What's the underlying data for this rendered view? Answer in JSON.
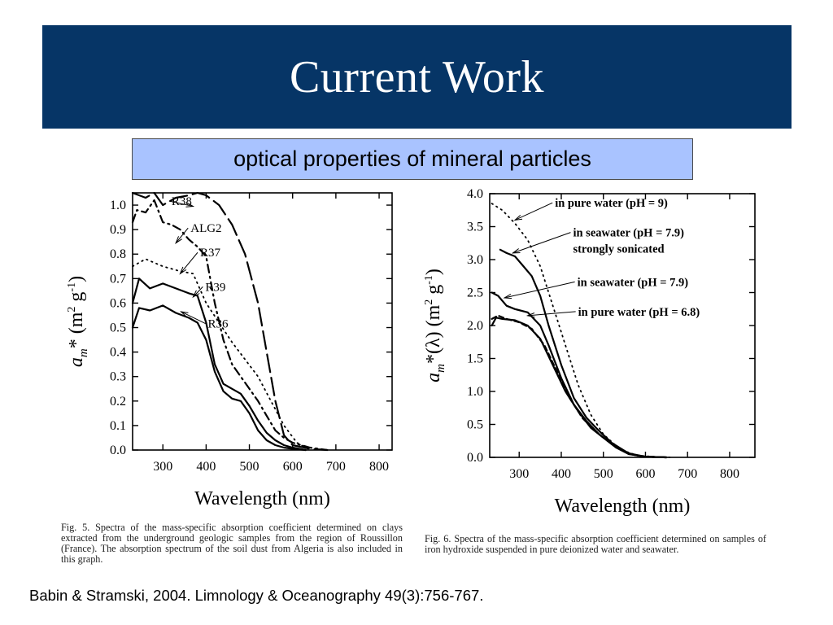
{
  "slide": {
    "title": "Current Work",
    "subtitle": "optical properties of mineral particles",
    "citation": "Babin & Stramski, 2004. Limnology & Oceanography 49(3):756-767."
  },
  "colors": {
    "title_bar": "#063566",
    "title_text": "#ffffff",
    "subtitle_box": "#a9c3ff",
    "curve": "#000000"
  },
  "captions": {
    "fig5": "Fig. 5.   Spectra of the mass-specific absorption coefficient determined on clays extracted from the underground geologic samples from the region of Roussillon (France). The absorption spectrum of the soil dust from Algeria is also included in this graph.",
    "fig6": "Fig. 6.   Spectra of the mass-specific absorption coefficient determined on samples of iron hydroxide suspended in pure deionized water and seawater."
  },
  "chart_data": [
    {
      "type": "line",
      "xlabel": "Wavelength (nm)",
      "ylabel_main": "a",
      "ylabel_sub": "m",
      "ylabel_rest": "* (m",
      "ylabel_sup1": "2",
      "ylabel_mid": " g",
      "ylabel_sup2": "-1",
      "ylabel_end": ")",
      "xlim": [
        230,
        830
      ],
      "ylim": [
        0,
        1.05
      ],
      "xticks": [
        300,
        400,
        500,
        600,
        700,
        800
      ],
      "xtick_labels": [
        "300",
        "400",
        "500",
        "600",
        "700",
        "800"
      ],
      "yticks": [
        0,
        0.1,
        0.2,
        0.3,
        0.4,
        0.5,
        0.6,
        0.7,
        0.8,
        0.9,
        1.0
      ],
      "ytick_labels": [
        "0.0",
        "0.1",
        "0.2",
        "0.3",
        "0.4",
        "0.5",
        "0.6",
        "0.7",
        "0.8",
        "0.9",
        "1.0"
      ],
      "series": [
        {
          "name": "R38",
          "style": "longdash",
          "x": [
            230,
            260,
            280,
            300,
            330,
            360,
            380,
            400,
            430,
            460,
            490,
            520,
            540,
            560,
            580,
            600,
            640,
            680
          ],
          "y": [
            1.05,
            1.03,
            1.05,
            1.0,
            1.03,
            1.04,
            1.05,
            1.04,
            1.0,
            0.92,
            0.8,
            0.6,
            0.4,
            0.2,
            0.06,
            0.02,
            0.005,
            0.0
          ],
          "label_pos": [
            320,
            1.0
          ],
          "arrow_to": [
            370,
            0.995
          ]
        },
        {
          "name": "ALG2",
          "style": "dashdot",
          "x": [
            230,
            240,
            260,
            280,
            300,
            320,
            340,
            360,
            380,
            400,
            420,
            440,
            460,
            480,
            500,
            520,
            540,
            560,
            580,
            600,
            640,
            680
          ],
          "y": [
            0.93,
            0.98,
            0.97,
            1.02,
            0.93,
            0.92,
            0.9,
            0.86,
            0.83,
            0.79,
            0.6,
            0.45,
            0.35,
            0.3,
            0.25,
            0.2,
            0.14,
            0.08,
            0.05,
            0.03,
            0.01,
            0.0
          ],
          "label_pos": [
            364,
            0.89
          ],
          "arrow_to": [
            330,
            0.845
          ]
        },
        {
          "name": "R37",
          "style": "dotted",
          "x": [
            230,
            260,
            300,
            340,
            370,
            400,
            430,
            460,
            490,
            520,
            550,
            580,
            610,
            640
          ],
          "y": [
            0.75,
            0.78,
            0.75,
            0.73,
            0.72,
            0.6,
            0.52,
            0.44,
            0.37,
            0.3,
            0.2,
            0.1,
            0.03,
            0.0
          ],
          "label_pos": [
            386,
            0.79
          ],
          "arrow_to": [
            340,
            0.72
          ]
        },
        {
          "name": "R39",
          "style": "solid",
          "x": [
            230,
            245,
            270,
            300,
            330,
            360,
            380,
            400,
            420,
            440,
            460,
            480,
            500,
            520,
            540,
            560,
            580,
            600,
            630
          ],
          "y": [
            0.6,
            0.7,
            0.66,
            0.68,
            0.66,
            0.64,
            0.63,
            0.52,
            0.35,
            0.27,
            0.25,
            0.23,
            0.18,
            0.12,
            0.07,
            0.04,
            0.02,
            0.01,
            0.0
          ],
          "label_pos": [
            398,
            0.65
          ],
          "arrow_to": [
            370,
            0.625
          ]
        },
        {
          "name": "R36",
          "style": "solid",
          "x": [
            230,
            245,
            270,
            300,
            330,
            360,
            380,
            400,
            420,
            440,
            460,
            480,
            500,
            520,
            540,
            560,
            580,
            600,
            630
          ],
          "y": [
            0.5,
            0.58,
            0.57,
            0.59,
            0.56,
            0.54,
            0.52,
            0.45,
            0.32,
            0.24,
            0.21,
            0.2,
            0.15,
            0.08,
            0.04,
            0.02,
            0.01,
            0.005,
            0.0
          ],
          "label_pos": [
            404,
            0.5
          ],
          "arrow_to": [
            342,
            0.565
          ]
        }
      ]
    },
    {
      "type": "line",
      "xlabel": "Wavelength (nm)",
      "ylabel_main": "a",
      "ylabel_sub": "m",
      "ylabel_rest": "*(λ) (m",
      "ylabel_sup1": "2",
      "ylabel_mid": " g",
      "ylabel_sup2": "-1",
      "ylabel_end": ")",
      "xlim": [
        230,
        860
      ],
      "ylim": [
        0,
        4.0
      ],
      "xticks": [
        300,
        400,
        500,
        600,
        700,
        800
      ],
      "xtick_labels": [
        "300",
        "400",
        "500",
        "600",
        "700",
        "800"
      ],
      "yticks": [
        0,
        0.5,
        1.0,
        1.5,
        2.0,
        2.5,
        3.0,
        3.5,
        4.0
      ],
      "ytick_labels": [
        "0.0",
        "0.5",
        "1.0",
        "1.5",
        "2.0",
        "2.5",
        "3.0",
        "3.5",
        "4.0"
      ],
      "series": [
        {
          "name": "in pure water (pH = 9)",
          "style": "dotted",
          "x": [
            235,
            260,
            290,
            320,
            350,
            380,
            410,
            440,
            470,
            500,
            540,
            580,
            620,
            660
          ],
          "y": [
            3.85,
            3.75,
            3.55,
            3.3,
            2.9,
            2.3,
            1.7,
            1.1,
            0.65,
            0.35,
            0.12,
            0.03,
            0.01,
            0.0
          ],
          "label_pos": [
            385,
            3.8
          ],
          "arrow_to": [
            290,
            3.6
          ]
        },
        {
          "name": "in seawater (pH = 7.9) strongly sonicated",
          "style": "solid",
          "x": [
            255,
            270,
            290,
            310,
            330,
            350,
            370,
            400,
            430,
            460,
            490,
            520,
            560,
            600,
            650
          ],
          "y": [
            3.15,
            3.1,
            3.05,
            2.9,
            2.75,
            2.45,
            2.0,
            1.4,
            0.9,
            0.6,
            0.4,
            0.22,
            0.06,
            0.01,
            0.0
          ],
          "label_pos": [
            428,
            3.35
          ],
          "arrow_to": [
            285,
            3.1
          ]
        },
        {
          "name": "in seawater (pH = 7.9)",
          "style": "solid",
          "x": [
            235,
            250,
            270,
            290,
            320,
            350,
            370,
            400,
            430,
            460,
            490,
            520,
            560,
            600,
            650
          ],
          "y": [
            2.5,
            2.45,
            2.3,
            2.25,
            2.2,
            2.0,
            1.7,
            1.2,
            0.8,
            0.55,
            0.35,
            0.2,
            0.05,
            0.01,
            0.0
          ],
          "label_pos": [
            438,
            2.6
          ],
          "arrow_to": [
            265,
            2.42
          ]
        },
        {
          "name": "in pure water (pH = 6.8)",
          "style": "solid",
          "x": [
            235,
            245,
            260,
            290,
            320,
            350,
            380,
            410,
            440,
            470,
            500,
            530,
            560,
            600,
            650
          ],
          "y": [
            2.0,
            2.12,
            2.1,
            2.08,
            2.0,
            1.8,
            1.4,
            1.0,
            0.7,
            0.45,
            0.3,
            0.15,
            0.05,
            0.01,
            0.0
          ],
          "label_pos": [
            440,
            2.15
          ],
          "arrow_to": [
            320,
            2.15
          ]
        },
        {
          "name": "",
          "style": "dashed",
          "x": [
            235,
            250,
            270,
            300,
            330,
            360,
            390,
            420,
            450,
            480,
            510,
            540,
            570,
            600,
            650
          ],
          "y": [
            2.1,
            2.15,
            2.1,
            2.05,
            1.95,
            1.7,
            1.3,
            0.9,
            0.6,
            0.4,
            0.25,
            0.12,
            0.04,
            0.01,
            0.0
          ]
        }
      ]
    }
  ]
}
